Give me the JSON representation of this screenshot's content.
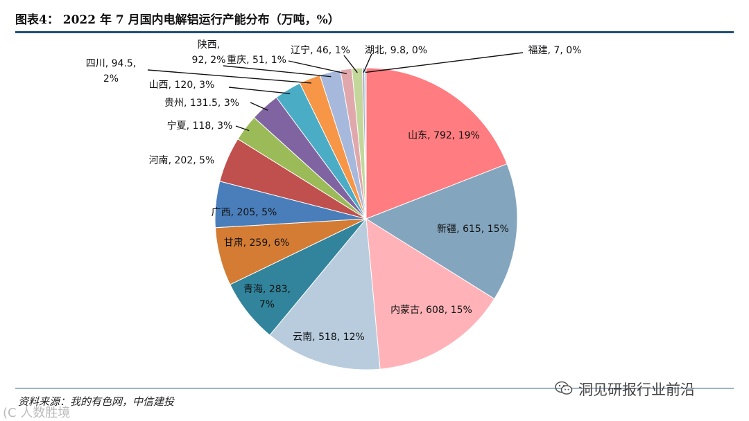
{
  "title": "图表4：  2022 年 7 月国内电解铝运行产能分布（万吨，%）",
  "source": "资料来源：我的有色网，中信建投",
  "watermark_left": "(C 人数胜境",
  "watermark_right": "洞见研报行业前沿",
  "watermark_icon": "wechat-icon",
  "chart_data": {
    "type": "pie",
    "title": "2022 年 7 月国内电解铝运行产能分布（万吨，%）",
    "unit": "万吨, %",
    "slices": [
      {
        "name": "山东",
        "value": 792,
        "pct": "19%",
        "color": "#ff7c80",
        "label": "山东, 792, 19%"
      },
      {
        "name": "新疆",
        "value": 615,
        "pct": "15%",
        "color": "#84a5be",
        "label": "新疆, 615, 15%"
      },
      {
        "name": "内蒙古",
        "value": 608,
        "pct": "15%",
        "color": "#ffb3b8",
        "label": "内蒙古, 608, 15%"
      },
      {
        "name": "云南",
        "value": 518,
        "pct": "12%",
        "color": "#b8ccde",
        "label": "云南, 518, 12%"
      },
      {
        "name": "青海",
        "value": 283,
        "pct": "7%",
        "color": "#31849b",
        "label": [
          "青海, 283,",
          "7%"
        ]
      },
      {
        "name": "甘肃",
        "value": 259,
        "pct": "6%",
        "color": "#d47c34",
        "label": "甘肃, 259, 6%"
      },
      {
        "name": "广西",
        "value": 205,
        "pct": "5%",
        "color": "#4a7ebb",
        "label": "广西, 205, 5%"
      },
      {
        "name": "河南",
        "value": 202,
        "pct": "5%",
        "color": "#c0504d",
        "label": "河南, 202, 5%"
      },
      {
        "name": "宁夏",
        "value": 118,
        "pct": "3%",
        "color": "#9bbb59",
        "label": "宁夏, 118, 3%"
      },
      {
        "name": "贵州",
        "value": 131.5,
        "pct": "3%",
        "color": "#8064a2",
        "label": "贵州, 131.5, 3%"
      },
      {
        "name": "山西",
        "value": 120,
        "pct": "3%",
        "color": "#4bacc6",
        "label": "山西, 120, 3%"
      },
      {
        "name": "四川",
        "value": 94.5,
        "pct": "2%",
        "color": "#f79646",
        "label": [
          "四川, 94.5,",
          "2%"
        ]
      },
      {
        "name": "陕西",
        "value": 92,
        "pct": "2%",
        "color": "#a6b9dc",
        "label": [
          "陕西,",
          "92, 2%"
        ]
      },
      {
        "name": "重庆",
        "value": 51,
        "pct": "1%",
        "color": "#e0a8ac",
        "label": "重庆, 51, 1%"
      },
      {
        "name": "辽宁",
        "value": 46,
        "pct": "1%",
        "color": "#c4d79b",
        "label": "辽宁, 46, 1%"
      },
      {
        "name": "湖北",
        "value": 9.8,
        "pct": "0%",
        "color": "#b2a1c7",
        "label": "湖北, 9.8, 0%"
      },
      {
        "name": "福建",
        "value": 7,
        "pct": "0%",
        "color": "#92cddc",
        "label": "福建, 7, 0%"
      }
    ]
  }
}
